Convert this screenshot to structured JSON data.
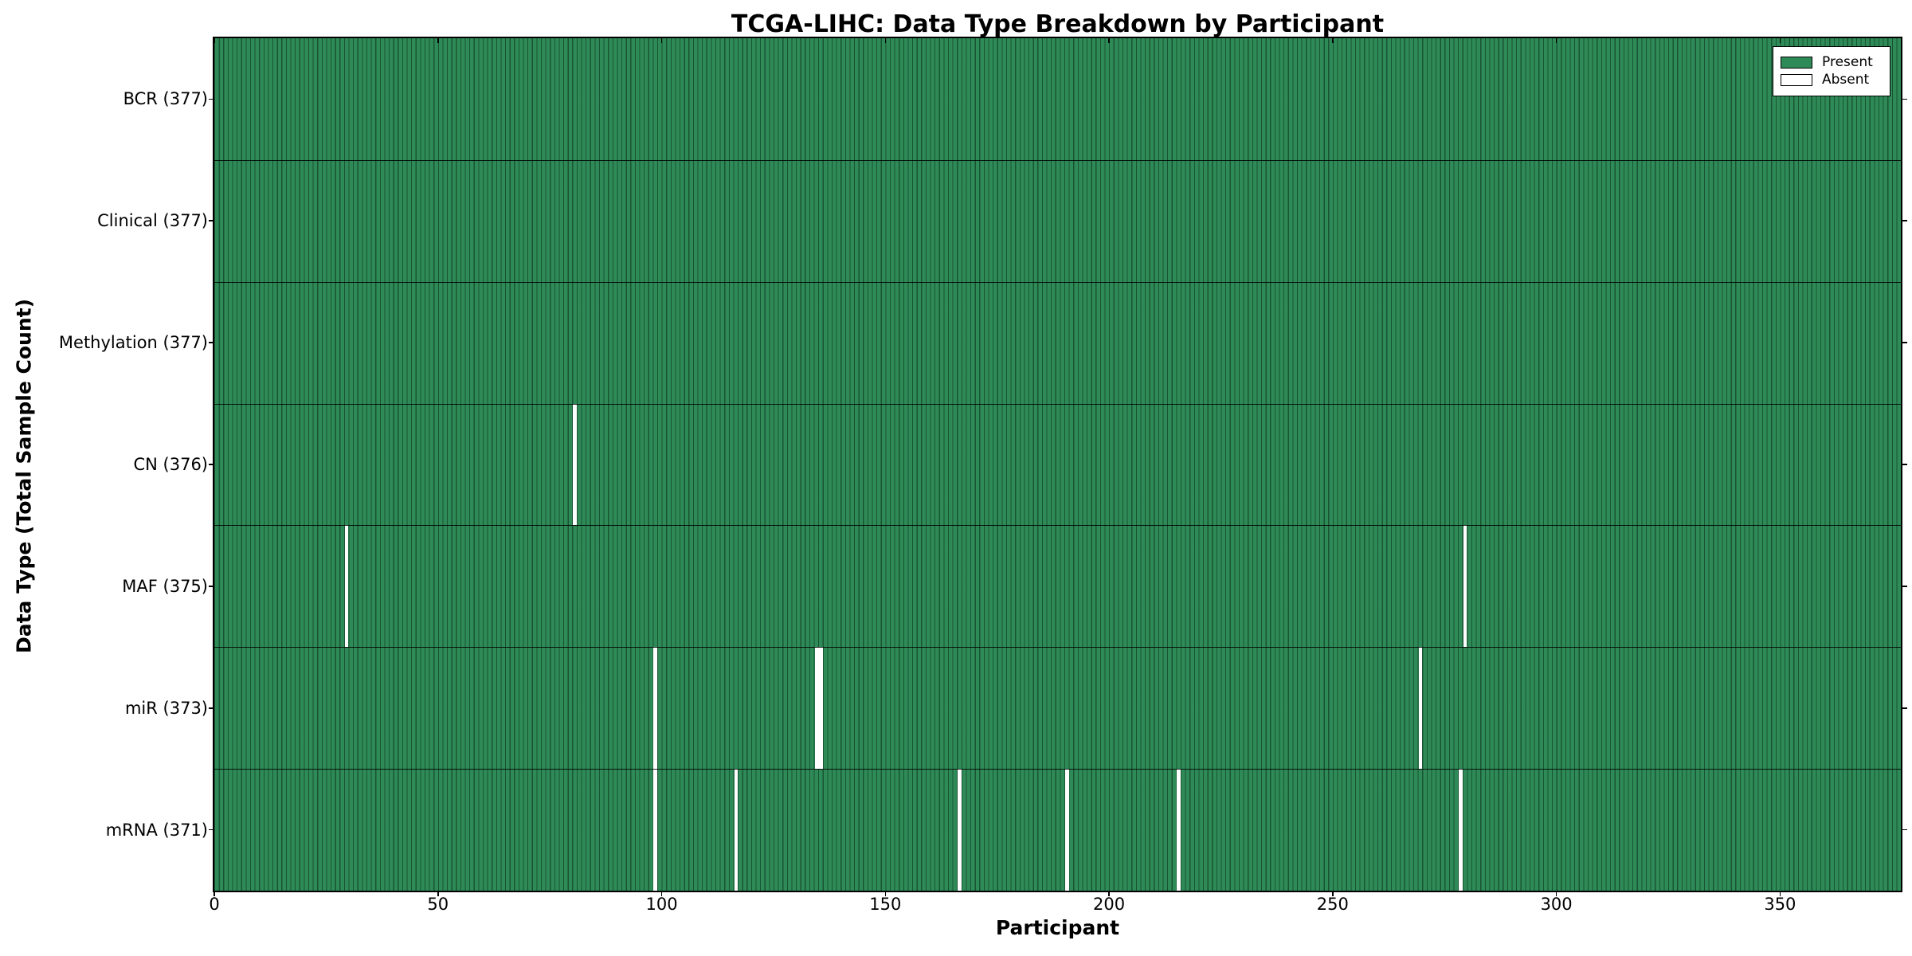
{
  "title": "TCGA-LIHC: Data Type Breakdown by Participant",
  "xlabel": "Participant",
  "ylabel": "Data Type (Total Sample Count)",
  "colors": {
    "present": "#2e8b57",
    "absent": "#ffffff",
    "bar_edge": "#1d5936",
    "axis": "#000000",
    "background": "#ffffff"
  },
  "chart_data": {
    "type": "heatmap",
    "title": "TCGA-LIHC: Data Type Breakdown by Participant",
    "xlabel": "Participant",
    "ylabel": "Data Type (Total Sample Count)",
    "n_participants": 377,
    "x_axis": {
      "label": "Participant",
      "ticks": [
        0,
        50,
        100,
        150,
        200,
        250,
        300,
        350
      ],
      "range": [
        0,
        377
      ],
      "grid": false
    },
    "rows": [
      {
        "name": "BCR",
        "label": "BCR (377)",
        "total": 377,
        "absent_participants": []
      },
      {
        "name": "Clinical",
        "label": "Clinical (377)",
        "total": 377,
        "absent_participants": []
      },
      {
        "name": "Methylation",
        "label": "Methylation (377)",
        "total": 377,
        "absent_participants": []
      },
      {
        "name": "CN",
        "label": "CN (376)",
        "total": 376,
        "absent_participants": [
          80
        ]
      },
      {
        "name": "MAF",
        "label": "MAF (375)",
        "total": 375,
        "absent_participants": [
          29,
          279
        ]
      },
      {
        "name": "miR",
        "label": "miR (373)",
        "total": 373,
        "absent_participants": [
          98,
          134,
          135,
          269
        ]
      },
      {
        "name": "mRNA",
        "label": "mRNA (371)",
        "total": 371,
        "absent_participants": [
          98,
          116,
          166,
          190,
          215,
          278
        ]
      }
    ],
    "legend": [
      {
        "label": "Present",
        "color": "#2e8b57"
      },
      {
        "label": "Absent",
        "color": "#ffffff"
      }
    ],
    "legend_position": "upper right"
  }
}
